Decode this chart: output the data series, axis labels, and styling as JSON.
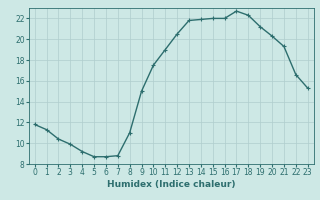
{
  "x": [
    0,
    1,
    2,
    3,
    4,
    5,
    6,
    7,
    8,
    9,
    10,
    11,
    12,
    13,
    14,
    15,
    16,
    17,
    18,
    19,
    20,
    21,
    22,
    23
  ],
  "y": [
    11.8,
    11.3,
    10.4,
    9.9,
    9.2,
    8.7,
    8.7,
    8.8,
    11.0,
    15.0,
    17.5,
    19.0,
    20.5,
    21.8,
    21.9,
    22.0,
    22.0,
    22.7,
    22.3,
    21.2,
    20.3,
    19.3,
    16.6,
    15.3
  ],
  "line_color": "#2d6e6e",
  "marker": "+",
  "marker_size": 3,
  "xlabel": "Humidex (Indice chaleur)",
  "xlim": [
    -0.5,
    23.5
  ],
  "ylim": [
    8,
    23
  ],
  "yticks": [
    8,
    10,
    12,
    14,
    16,
    18,
    20,
    22
  ],
  "xticks": [
    0,
    1,
    2,
    3,
    4,
    5,
    6,
    7,
    8,
    9,
    10,
    11,
    12,
    13,
    14,
    15,
    16,
    17,
    18,
    19,
    20,
    21,
    22,
    23
  ],
  "bg_color": "#cde8e5",
  "grid_color": "#b0cece",
  "axis_color": "#2d6e6e",
  "label_fontsize": 6.5,
  "tick_fontsize": 5.5,
  "line_width": 1.0
}
